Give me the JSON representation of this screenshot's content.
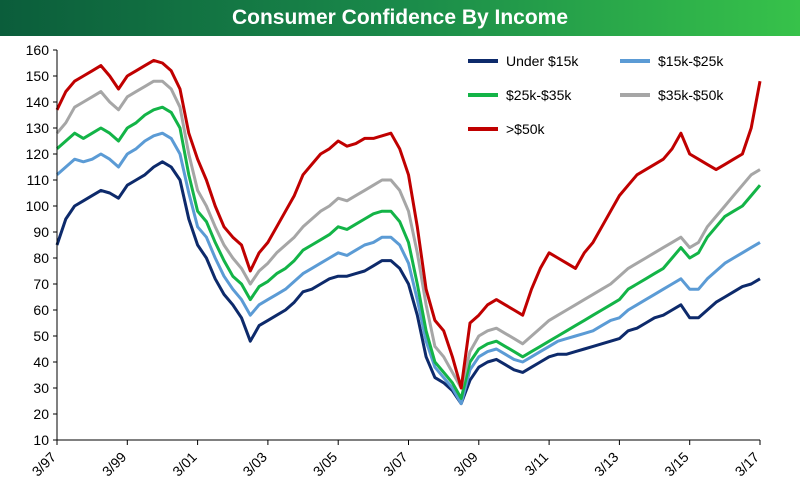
{
  "chart_data": {
    "type": "line",
    "title": "Consumer Confidence By Income",
    "xlabel": "",
    "ylabel": "",
    "ylim": [
      10,
      160
    ],
    "yticks": [
      10,
      20,
      30,
      40,
      50,
      60,
      70,
      80,
      90,
      100,
      110,
      120,
      130,
      140,
      150,
      160
    ],
    "xticks": [
      "3/97",
      "3/99",
      "3/01",
      "3/03",
      "3/05",
      "3/07",
      "3/09",
      "3/11",
      "3/13",
      "3/15",
      "3/17"
    ],
    "xlim": [
      0,
      240
    ],
    "x_unit": "months since 3/97",
    "legend_position": "top-right",
    "series": [
      {
        "name": "Under $15k",
        "color": "#0d2a6b",
        "x": [
          0,
          3,
          6,
          9,
          12,
          15,
          18,
          21,
          24,
          27,
          30,
          33,
          36,
          39,
          42,
          45,
          48,
          51,
          54,
          57,
          60,
          63,
          66,
          69,
          72,
          75,
          78,
          81,
          84,
          87,
          90,
          93,
          96,
          99,
          102,
          105,
          108,
          111,
          114,
          117,
          120,
          123,
          126,
          129,
          132,
          135,
          138,
          141,
          144,
          147,
          150,
          153,
          156,
          159,
          162,
          165,
          168,
          171,
          174,
          177,
          180,
          183,
          186,
          189,
          192,
          195,
          198,
          201,
          204,
          207,
          210,
          213,
          216,
          219,
          222,
          225,
          228,
          231,
          234,
          237,
          240
        ],
        "values": [
          85,
          95,
          100,
          102,
          104,
          106,
          105,
          103,
          108,
          110,
          112,
          115,
          117,
          115,
          110,
          95,
          85,
          80,
          72,
          66,
          62,
          57,
          48,
          54,
          56,
          58,
          60,
          63,
          67,
          68,
          70,
          72,
          73,
          73,
          74,
          75,
          77,
          79,
          79,
          76,
          70,
          58,
          42,
          34,
          32,
          29,
          24,
          33,
          38,
          40,
          41,
          39,
          37,
          36,
          38,
          40,
          42,
          43,
          43,
          44,
          45,
          46,
          47,
          48,
          49,
          52,
          53,
          55,
          57,
          58,
          60,
          62,
          57,
          57,
          60,
          63,
          65,
          67,
          69,
          70,
          72
        ]
      },
      {
        "name": "$15k-$25k",
        "color": "#5b9bd5",
        "x": [
          0,
          3,
          6,
          9,
          12,
          15,
          18,
          21,
          24,
          27,
          30,
          33,
          36,
          39,
          42,
          45,
          48,
          51,
          54,
          57,
          60,
          63,
          66,
          69,
          72,
          75,
          78,
          81,
          84,
          87,
          90,
          93,
          96,
          99,
          102,
          105,
          108,
          111,
          114,
          117,
          120,
          123,
          126,
          129,
          132,
          135,
          138,
          141,
          144,
          147,
          150,
          153,
          156,
          159,
          162,
          165,
          168,
          171,
          174,
          177,
          180,
          183,
          186,
          189,
          192,
          195,
          198,
          201,
          204,
          207,
          210,
          213,
          216,
          219,
          222,
          225,
          228,
          231,
          234,
          237,
          240
        ],
        "values": [
          112,
          115,
          118,
          117,
          118,
          120,
          118,
          115,
          120,
          122,
          125,
          127,
          128,
          126,
          120,
          105,
          92,
          88,
          80,
          73,
          68,
          64,
          58,
          62,
          64,
          66,
          68,
          71,
          74,
          76,
          78,
          80,
          82,
          81,
          83,
          85,
          86,
          88,
          88,
          85,
          78,
          64,
          48,
          38,
          34,
          30,
          24,
          37,
          42,
          44,
          45,
          43,
          41,
          40,
          42,
          44,
          46,
          48,
          49,
          50,
          51,
          52,
          54,
          56,
          57,
          60,
          62,
          64,
          66,
          68,
          70,
          72,
          68,
          68,
          72,
          75,
          78,
          80,
          82,
          84,
          86
        ]
      },
      {
        "name": "$25k-$35k",
        "color": "#13b447",
        "x": [
          0,
          3,
          6,
          9,
          12,
          15,
          18,
          21,
          24,
          27,
          30,
          33,
          36,
          39,
          42,
          45,
          48,
          51,
          54,
          57,
          60,
          63,
          66,
          69,
          72,
          75,
          78,
          81,
          84,
          87,
          90,
          93,
          96,
          99,
          102,
          105,
          108,
          111,
          114,
          117,
          120,
          123,
          126,
          129,
          132,
          135,
          138,
          141,
          144,
          147,
          150,
          153,
          156,
          159,
          162,
          165,
          168,
          171,
          174,
          177,
          180,
          183,
          186,
          189,
          192,
          195,
          198,
          201,
          204,
          207,
          210,
          213,
          216,
          219,
          222,
          225,
          228,
          231,
          234,
          237,
          240
        ],
        "values": [
          122,
          125,
          128,
          126,
          128,
          130,
          128,
          125,
          130,
          132,
          135,
          137,
          138,
          136,
          130,
          112,
          98,
          94,
          86,
          79,
          73,
          70,
          64,
          69,
          71,
          74,
          76,
          79,
          83,
          85,
          87,
          89,
          92,
          91,
          93,
          95,
          97,
          98,
          98,
          94,
          86,
          70,
          52,
          40,
          36,
          32,
          26,
          40,
          45,
          47,
          48,
          46,
          44,
          42,
          44,
          46,
          48,
          50,
          52,
          54,
          56,
          58,
          60,
          62,
          64,
          68,
          70,
          72,
          74,
          76,
          80,
          84,
          80,
          82,
          88,
          92,
          96,
          98,
          100,
          104,
          108
        ]
      },
      {
        "name": "$35k-$50k",
        "color": "#a6a6a6",
        "x": [
          0,
          3,
          6,
          9,
          12,
          15,
          18,
          21,
          24,
          27,
          30,
          33,
          36,
          39,
          42,
          45,
          48,
          51,
          54,
          57,
          60,
          63,
          66,
          69,
          72,
          75,
          78,
          81,
          84,
          87,
          90,
          93,
          96,
          99,
          102,
          105,
          108,
          111,
          114,
          117,
          120,
          123,
          126,
          129,
          132,
          135,
          138,
          141,
          144,
          147,
          150,
          153,
          156,
          159,
          162,
          165,
          168,
          171,
          174,
          177,
          180,
          183,
          186,
          189,
          192,
          195,
          198,
          201,
          204,
          207,
          210,
          213,
          216,
          219,
          222,
          225,
          228,
          231,
          234,
          237,
          240
        ],
        "values": [
          128,
          132,
          138,
          140,
          142,
          144,
          140,
          137,
          142,
          144,
          146,
          148,
          148,
          145,
          138,
          120,
          106,
          100,
          92,
          85,
          80,
          76,
          70,
          75,
          78,
          82,
          85,
          88,
          92,
          95,
          98,
          100,
          103,
          102,
          104,
          106,
          108,
          110,
          110,
          106,
          98,
          82,
          62,
          46,
          42,
          36,
          30,
          44,
          50,
          52,
          53,
          51,
          49,
          47,
          50,
          53,
          56,
          58,
          60,
          62,
          64,
          66,
          68,
          70,
          73,
          76,
          78,
          80,
          82,
          84,
          86,
          88,
          84,
          86,
          92,
          96,
          100,
          104,
          108,
          112,
          114
        ]
      },
      {
        "name": ">$50k",
        "color": "#c00000",
        "x": [
          0,
          3,
          6,
          9,
          12,
          15,
          18,
          21,
          24,
          27,
          30,
          33,
          36,
          39,
          42,
          45,
          48,
          51,
          54,
          57,
          60,
          63,
          66,
          69,
          72,
          75,
          78,
          81,
          84,
          87,
          90,
          93,
          96,
          99,
          102,
          105,
          108,
          111,
          114,
          117,
          120,
          123,
          126,
          129,
          132,
          135,
          138,
          141,
          144,
          147,
          150,
          153,
          156,
          159,
          162,
          165,
          168,
          171,
          174,
          177,
          180,
          183,
          186,
          189,
          192,
          195,
          198,
          201,
          204,
          207,
          210,
          213,
          216,
          219,
          222,
          225,
          228,
          231,
          234,
          237,
          240
        ],
        "values": [
          137,
          144,
          148,
          150,
          152,
          154,
          150,
          145,
          150,
          152,
          154,
          156,
          155,
          152,
          145,
          128,
          118,
          110,
          100,
          92,
          88,
          85,
          75,
          82,
          86,
          92,
          98,
          104,
          112,
          116,
          120,
          122,
          125,
          123,
          124,
          126,
          126,
          127,
          128,
          122,
          112,
          92,
          68,
          56,
          52,
          42,
          30,
          55,
          58,
          62,
          64,
          62,
          60,
          58,
          68,
          76,
          82,
          80,
          78,
          76,
          82,
          86,
          92,
          98,
          104,
          108,
          112,
          114,
          116,
          118,
          122,
          128,
          120,
          118,
          116,
          114,
          116,
          118,
          120,
          130,
          148
        ]
      }
    ]
  }
}
